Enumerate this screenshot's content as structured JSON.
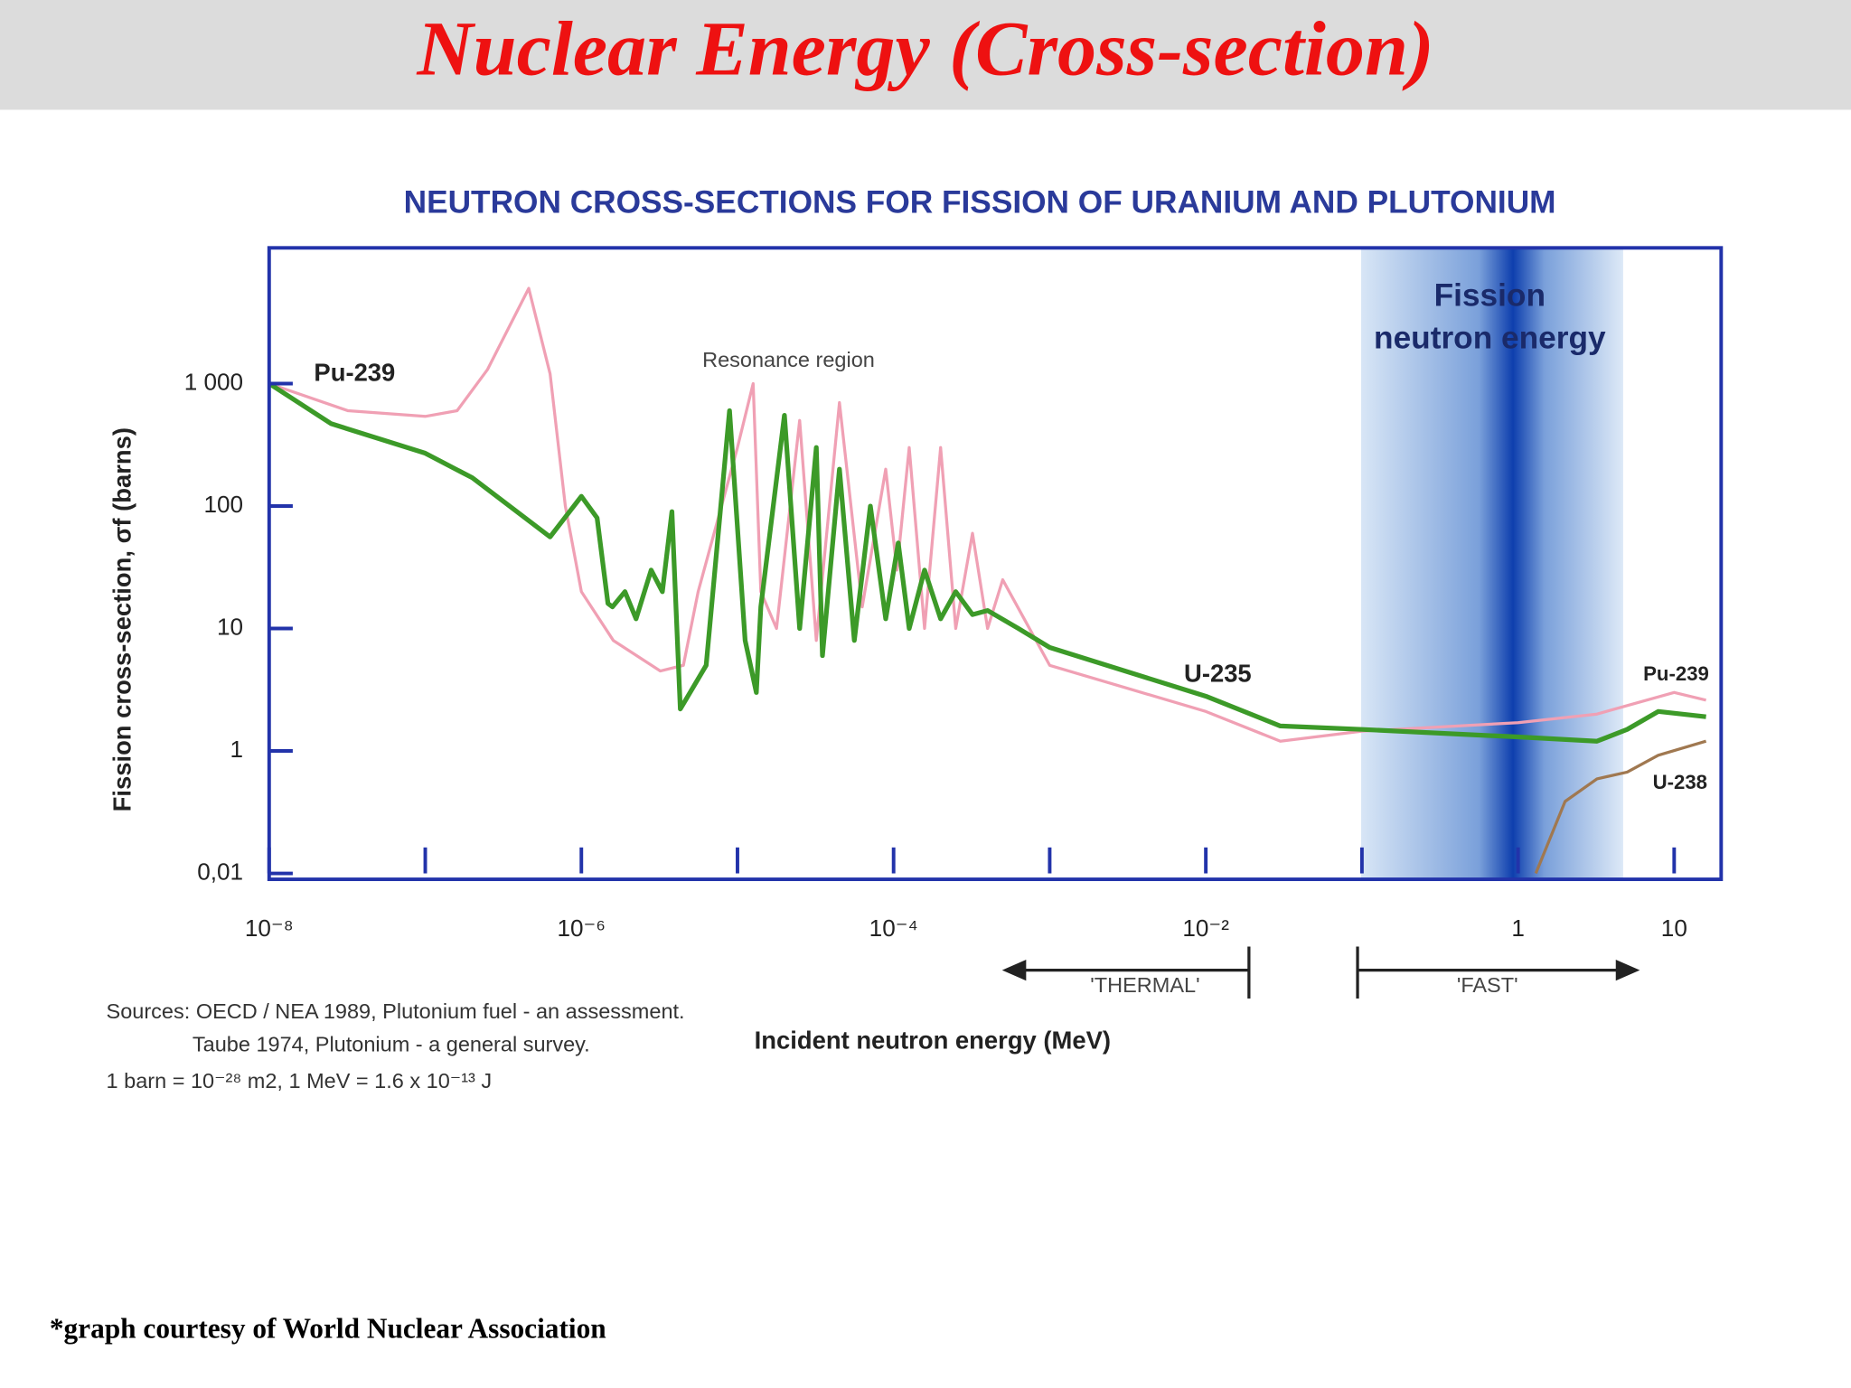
{
  "slide_title": "Nuclear Energy (Cross-section)",
  "footer": "*graph courtesy of World Nuclear Association",
  "chart_data": {
    "type": "line",
    "title": "NEUTRON CROSS-SECTIONS FOR FISSION OF URANIUM AND PLUTONIUM",
    "x_label": "Incident neutron energy (MeV)",
    "y_label": "Fission cross-section, σf (barns)",
    "x_log": true,
    "y_log": true,
    "xlim": [
      1e-08,
      20
    ],
    "ylim": [
      0.01,
      12000
    ],
    "xticks": [
      {
        "value": 1e-08,
        "label": "10⁻⁸"
      },
      {
        "value": 1e-06,
        "label": "10⁻⁶"
      },
      {
        "value": 0.0001,
        "label": "10⁻⁴"
      },
      {
        "value": 0.01,
        "label": "10⁻²"
      },
      1,
      10
    ],
    "xminor": [
      1e-07,
      1e-05,
      0.001,
      0.1
    ],
    "yticks": [
      {
        "value": 0.01,
        "label": "0,01"
      },
      1,
      10,
      100,
      {
        "value": 1000,
        "label": "1 000"
      }
    ],
    "series": [
      {
        "name": "Pu-239",
        "color": "#f0a0b4",
        "x": [
          1e-08,
          3.2e-08,
          1e-07,
          1.6e-07,
          2.5e-07,
          4.6e-07,
          6.3e-07,
          7.9e-07,
          1e-06,
          1.6e-06,
          3.2e-06,
          4.5e-06,
          5.6e-06,
          7.9e-06,
          1e-05,
          1.26e-05,
          1.41e-05,
          1.78e-05,
          2.5e-05,
          3.2e-05,
          4.5e-05,
          6.3e-05,
          8.9e-05,
          0.000105,
          0.000126,
          0.000158,
          0.0002,
          0.00025,
          0.00032,
          0.0004,
          0.0005,
          0.001,
          0.01,
          0.03,
          0.1,
          1,
          3.2,
          10,
          16
        ],
        "values": [
          1000,
          600,
          540,
          600,
          1300,
          6000,
          1200,
          100,
          20,
          8,
          4.5,
          5,
          20,
          100,
          300,
          1000,
          20,
          10,
          500,
          8,
          700,
          15,
          200,
          30,
          300,
          10,
          300,
          10,
          60,
          10,
          25,
          5,
          2.1,
          1.2,
          1.45,
          1.7,
          2,
          3,
          2.6
        ]
      },
      {
        "name": "U-235",
        "color": "#3c9a28",
        "x": [
          1e-08,
          2.5e-08,
          1e-07,
          2e-07,
          6.3e-07,
          1e-06,
          1.26e-06,
          1.48e-06,
          1.58e-06,
          1.9e-06,
          2.24e-06,
          2.8e-06,
          3.3e-06,
          3.8e-06,
          4.3e-06,
          6.3e-06,
          8.9e-06,
          1.12e-05,
          1.32e-05,
          1.41e-05,
          2e-05,
          2.5e-05,
          3.2e-05,
          3.5e-05,
          4.5e-05,
          5.6e-05,
          7.1e-05,
          8.9e-05,
          0.000107,
          0.000126,
          0.000158,
          0.0002,
          0.00025,
          0.00032,
          0.0004,
          0.00063,
          0.001,
          0.01,
          0.03,
          0.1,
          1,
          3.2,
          5,
          7.9,
          16
        ],
        "values": [
          1000,
          470,
          270,
          170,
          56,
          120,
          80,
          16,
          15,
          20,
          12,
          30,
          20,
          90,
          2.2,
          5,
          600,
          8,
          3,
          15,
          550,
          10,
          300,
          6,
          200,
          8,
          100,
          12,
          50,
          10,
          30,
          12,
          20,
          13,
          14,
          10,
          7,
          2.8,
          1.6,
          1.5,
          1.3,
          1.2,
          1.5,
          2.1,
          1.9
        ]
      },
      {
        "name": "U-238",
        "color": "#a07850",
        "x": [
          1.3,
          2,
          3.2,
          5,
          7.9,
          16
        ],
        "values": [
          0.01,
          0.15,
          0.35,
          0.45,
          0.85,
          1.2
        ]
      }
    ],
    "annotations": {
      "resonance": "Resonance region",
      "fission_band": [
        "Fission",
        "neutron energy"
      ],
      "thermal": "'THERMAL'",
      "fast": "'FAST'"
    },
    "sources": [
      "Sources: OECD / NEA 1989, Plutonium fuel - an assessment.",
      "Taube 1974, Plutonium - a general survey.",
      "1 barn = 10⁻²⁸ m2,  1 MeV = 1.6 x 10⁻¹³ J"
    ]
  }
}
